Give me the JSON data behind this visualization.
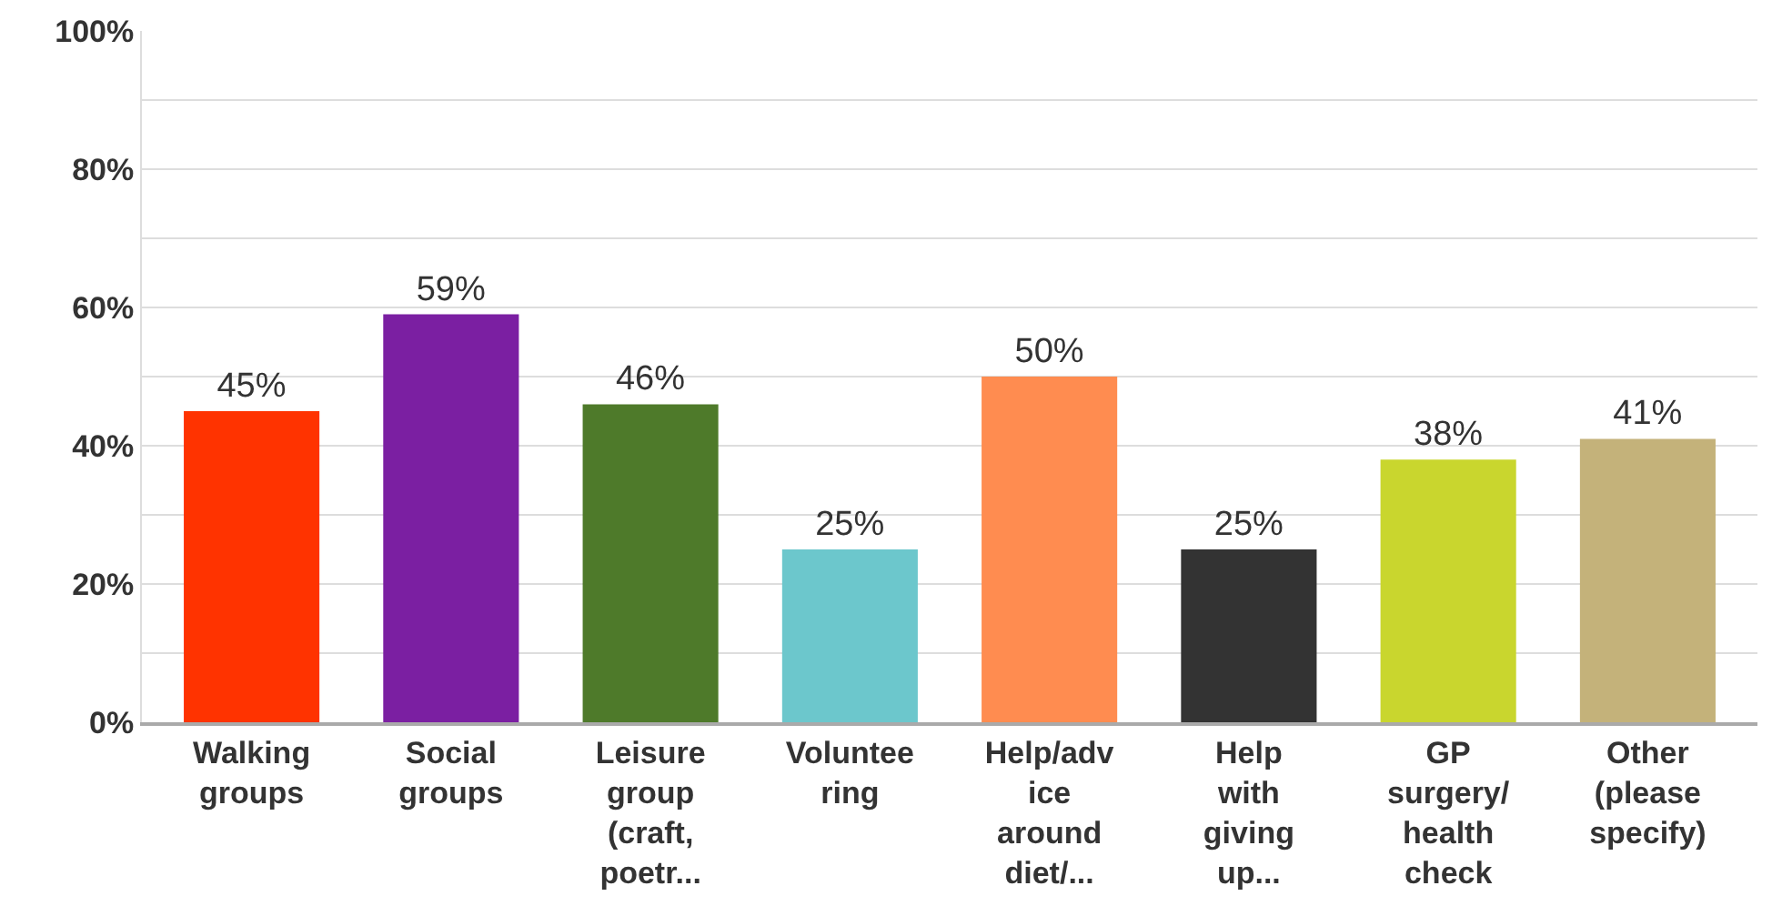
{
  "chart_data": {
    "type": "bar",
    "categories": [
      "Walking\ngroups",
      "Social\ngroups",
      "Leisure\ngroup\n(craft,\npoetr...",
      "Voluntee\nring",
      "Help/adv\nice\naround\ndiet/...",
      "Help\nwith\ngiving\nup...",
      "GP\nsurgery/\nhealth\ncheck",
      "Other\n(please\nspecify)"
    ],
    "values": [
      45,
      59,
      46,
      25,
      50,
      25,
      38,
      41
    ],
    "colors": [
      "#ff3300",
      "#7b1fa2",
      "#4e7a2a",
      "#6cc7cc",
      "#ff8c50",
      "#333333",
      "#c9d62e",
      "#c4b27a"
    ],
    "value_labels": [
      "45%",
      "59%",
      "46%",
      "25%",
      "50%",
      "25%",
      "38%",
      "41%"
    ],
    "ylim": [
      0,
      100
    ],
    "yticks": [
      {
        "value": 0,
        "label": "0%"
      },
      {
        "value": 10,
        "label": null
      },
      {
        "value": 20,
        "label": "20%"
      },
      {
        "value": 30,
        "label": null
      },
      {
        "value": 40,
        "label": "40%"
      },
      {
        "value": 50,
        "label": null
      },
      {
        "value": 60,
        "label": "60%"
      },
      {
        "value": 70,
        "label": null
      },
      {
        "value": 80,
        "label": "80%"
      },
      {
        "value": 90,
        "label": null
      },
      {
        "value": 100,
        "label": "100%"
      }
    ],
    "grid": "y",
    "legend": false
  }
}
